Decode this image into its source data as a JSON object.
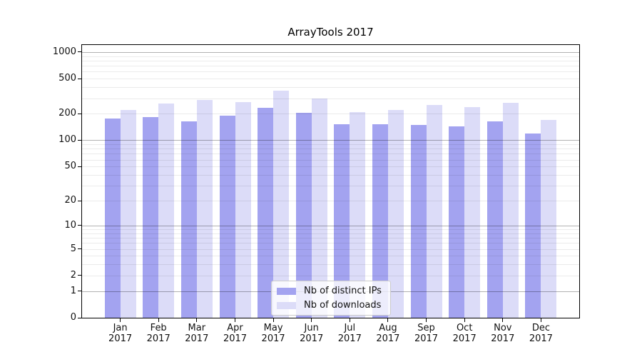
{
  "figure": {
    "background": "#ffffff"
  },
  "chart_data": {
    "type": "bar",
    "title": "ArrayTools 2017",
    "xlabel": "",
    "ylabel": "",
    "scale": "log10(1+x)",
    "ylim": [
      0,
      1200
    ],
    "yticks": [
      0,
      1,
      2,
      5,
      10,
      20,
      50,
      100,
      200,
      500,
      1000
    ],
    "grid": {
      "major_values": [
        1,
        10,
        100,
        1000
      ],
      "minor_values": [
        2,
        3,
        4,
        5,
        6,
        7,
        8,
        9,
        20,
        30,
        40,
        50,
        60,
        70,
        80,
        90,
        200,
        300,
        400,
        500,
        600,
        700,
        800,
        900
      ]
    },
    "categories": [
      {
        "month": "Jan",
        "year": "2017"
      },
      {
        "month": "Feb",
        "year": "2017"
      },
      {
        "month": "Mar",
        "year": "2017"
      },
      {
        "month": "Apr",
        "year": "2017"
      },
      {
        "month": "May",
        "year": "2017"
      },
      {
        "month": "Jun",
        "year": "2017"
      },
      {
        "month": "Jul",
        "year": "2017"
      },
      {
        "month": "Aug",
        "year": "2017"
      },
      {
        "month": "Sep",
        "year": "2017"
      },
      {
        "month": "Oct",
        "year": "2017"
      },
      {
        "month": "Nov",
        "year": "2017"
      },
      {
        "month": "Dec",
        "year": "2017"
      }
    ],
    "series": [
      {
        "name": "Nb of distinct IPs",
        "color": "#a3a3f0",
        "values": [
          176,
          184,
          165,
          192,
          234,
          206,
          153,
          152,
          149,
          145,
          163,
          119
        ]
      },
      {
        "name": "Nb of downloads",
        "color": "#dcdcf8",
        "values": [
          223,
          259,
          286,
          271,
          366,
          298,
          208,
          220,
          252,
          236,
          264,
          169
        ]
      }
    ],
    "legend_position": "lower center"
  }
}
